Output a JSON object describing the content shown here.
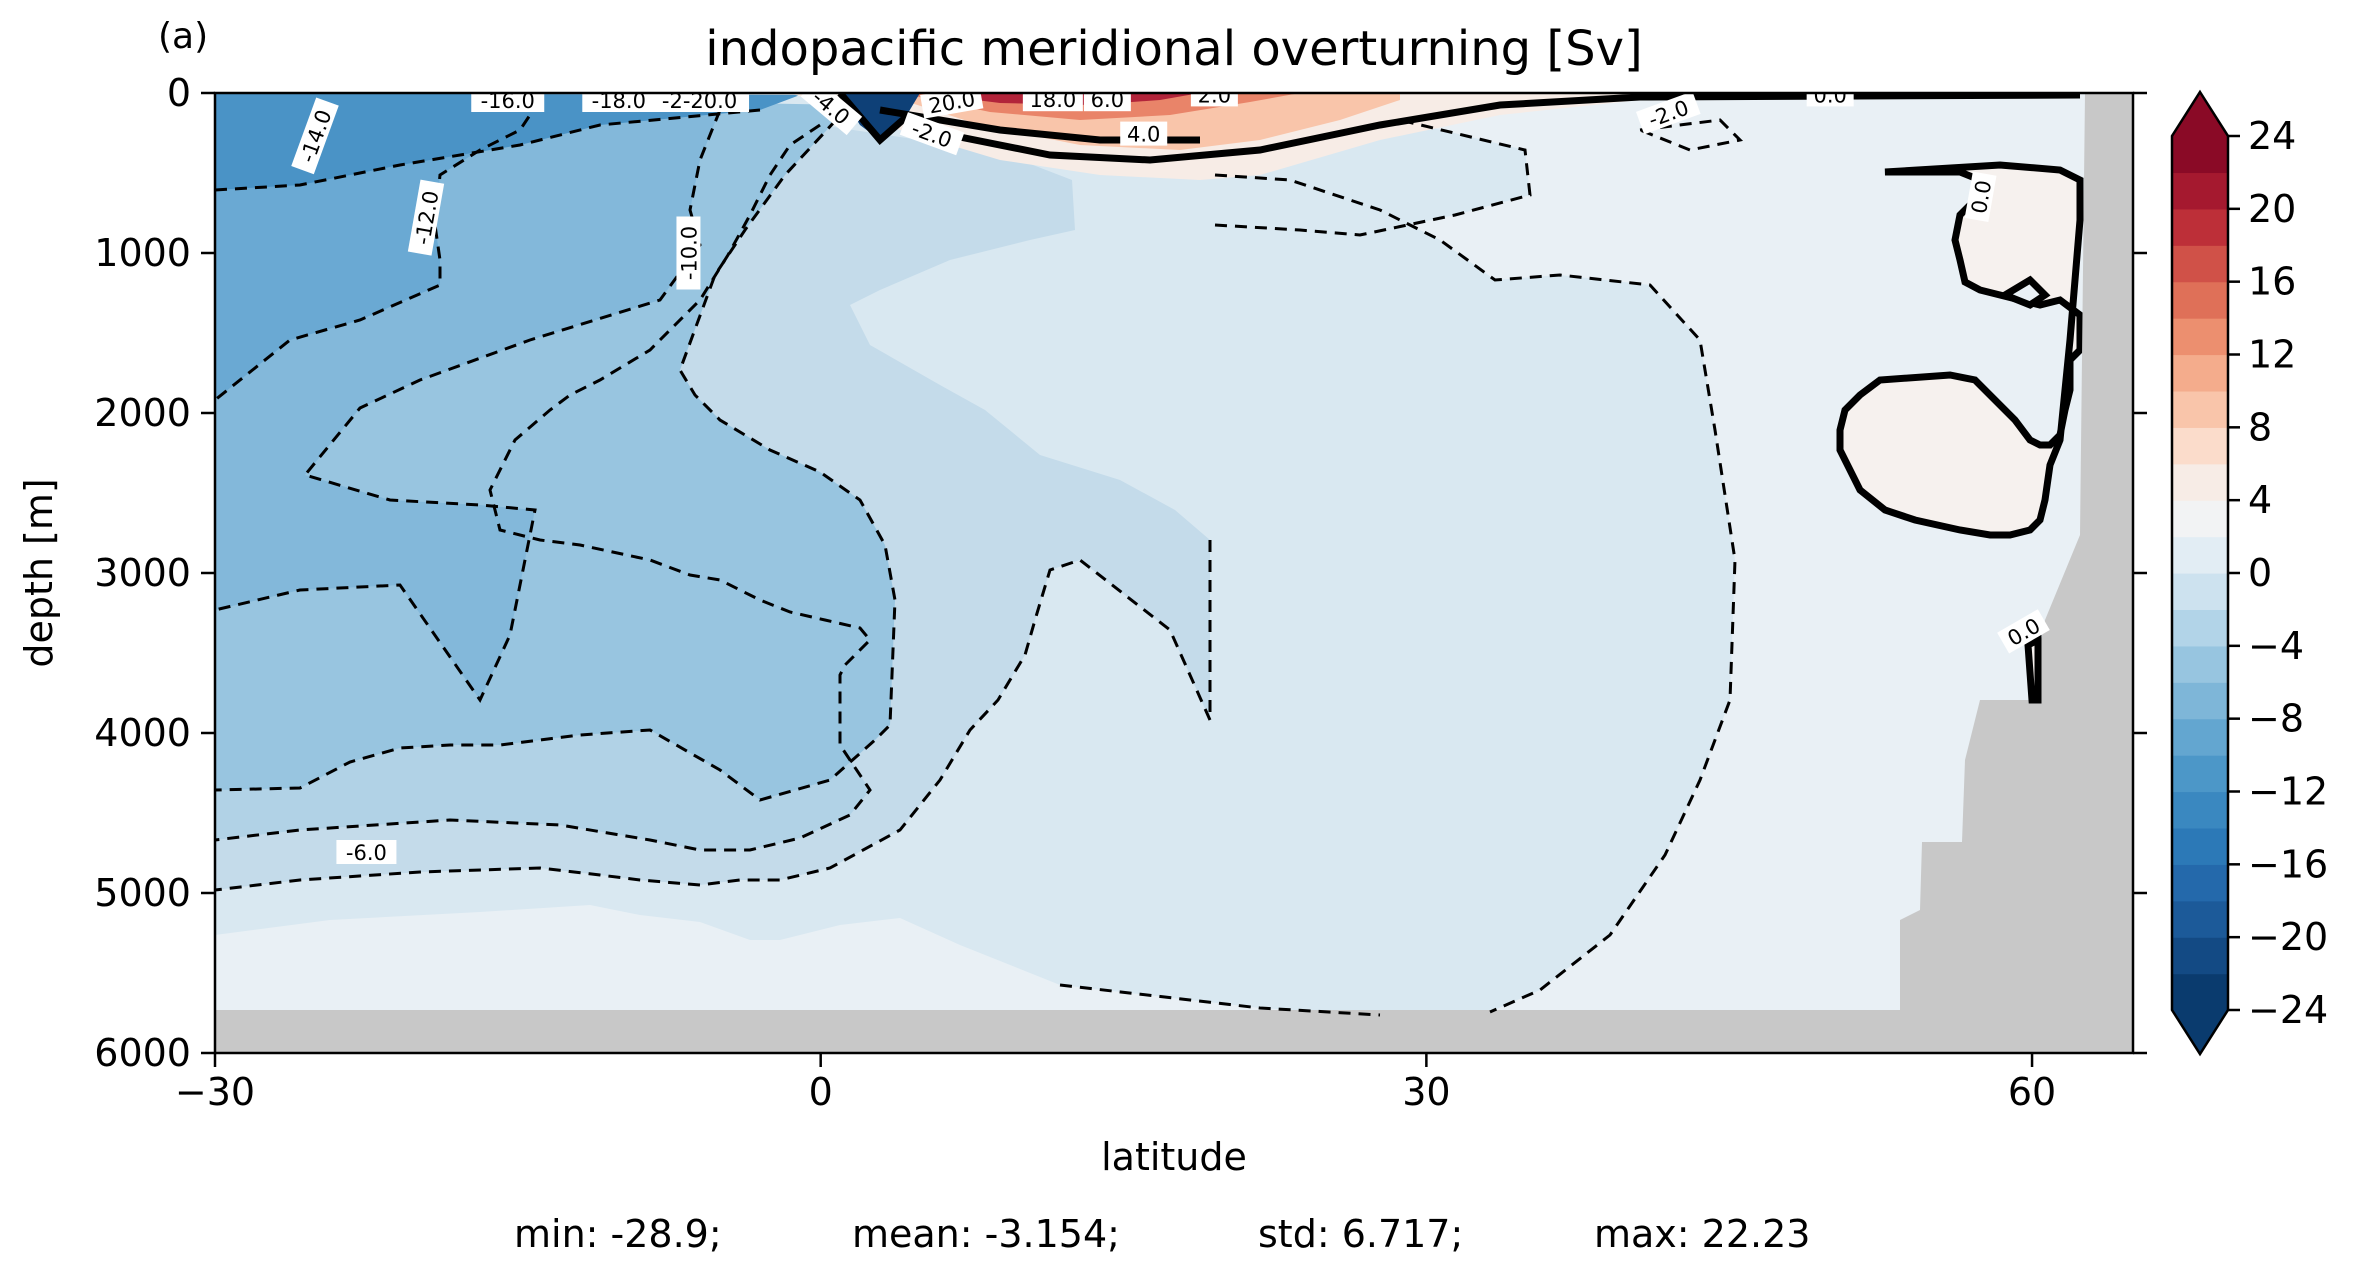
{
  "panel_label": "(a)",
  "footer": {
    "min": "min: -28.9;",
    "mean": "mean: -3.154;",
    "std": "std: 6.717;",
    "max": "max: 22.23"
  },
  "colors": {
    "land": "#c8c8c8",
    "colormap": "RdBu_r"
  },
  "chart_data": {
    "type": "contourf",
    "title": "indopacific meridional overturning [Sv]",
    "xlabel": "latitude",
    "ylabel": "depth [m]",
    "xlim": [
      -30,
      65
    ],
    "ylim": [
      6000,
      0
    ],
    "x_ticks": [
      -30,
      0,
      30,
      60
    ],
    "x_tick_labels": [
      "−30",
      "0",
      "30",
      "60"
    ],
    "y_ticks": [
      0,
      1000,
      2000,
      3000,
      4000,
      5000,
      6000
    ],
    "y_tick_labels": [
      "0",
      "1000",
      "2000",
      "3000",
      "4000",
      "5000",
      "6000"
    ],
    "colorbar": {
      "levels": [
        -24,
        -22,
        -20,
        -18,
        -16,
        -14,
        -12,
        -10,
        -8,
        -6,
        -4,
        -2,
        0,
        2,
        4,
        6,
        8,
        10,
        12,
        14,
        16,
        18,
        20,
        22,
        24
      ],
      "colors": [
        "#0a3b6e",
        "#134a84",
        "#1c5a99",
        "#2469ab",
        "#2c79b7",
        "#3a88c0",
        "#4c97c8",
        "#63a6d0",
        "#7eb6d8",
        "#97c5e0",
        "#b2d4e8",
        "#cde2ef",
        "#e2edf4",
        "#f2f3f4",
        "#f7ece6",
        "#fbdccb",
        "#f9c5aa",
        "#f4ac8c",
        "#ec8f6f",
        "#df7058",
        "#d05148",
        "#bd2f38",
        "#a5192f",
        "#8a0a26"
      ],
      "extend": "both",
      "ticks": [
        -24,
        -20,
        -16,
        -12,
        -8,
        -4,
        0,
        4,
        8,
        12,
        16,
        20,
        24
      ],
      "tick_labels": [
        "−24",
        "−20",
        "−16",
        "−12",
        "−8",
        "−4",
        "0",
        "4",
        "8",
        "12",
        "16",
        "20",
        "24"
      ]
    },
    "contour_labels": [
      {
        "text": "-16.0",
        "x": -15.5,
        "y": 50,
        "angle": 0
      },
      {
        "text": "-18.0",
        "x": -10,
        "y": 50,
        "angle": 0
      },
      {
        "text": "-2-20.0",
        "x": -6,
        "y": 50,
        "angle": 0
      },
      {
        "text": "-14.0",
        "x": -25,
        "y": 270,
        "angle": -70
      },
      {
        "text": "-12.0",
        "x": -19.5,
        "y": 780,
        "angle": -80
      },
      {
        "text": "-10.0",
        "x": -6.5,
        "y": 1000,
        "angle": -90
      },
      {
        "text": "-6.0",
        "x": -22.5,
        "y": 4750,
        "angle": 0
      },
      {
        "text": "-2.0",
        "x": 5.5,
        "y": 260,
        "angle": 20
      },
      {
        "text": "-4.0",
        "x": 0.5,
        "y": 90,
        "angle": 40
      },
      {
        "text": "-2.0",
        "x": 42,
        "y": 130,
        "angle": -20
      },
      {
        "text": "4.0",
        "x": 16,
        "y": 260,
        "angle": 0
      },
      {
        "text": "20.0",
        "x": 6.5,
        "y": 60,
        "angle": -10
      },
      {
        "text": "18.0",
        "x": 11.5,
        "y": 45,
        "angle": 0
      },
      {
        "text": "6.0",
        "x": 14.2,
        "y": 45,
        "angle": 0
      },
      {
        "text": "2.0",
        "x": 19.5,
        "y": 15,
        "angle": 0
      },
      {
        "text": "0.0",
        "x": 50,
        "y": 15,
        "angle": 0
      },
      {
        "text": "0.0",
        "x": 57.5,
        "y": 650,
        "angle": -80
      },
      {
        "text": "0.0",
        "x": 59.6,
        "y": 3370,
        "angle": -30
      }
    ]
  }
}
